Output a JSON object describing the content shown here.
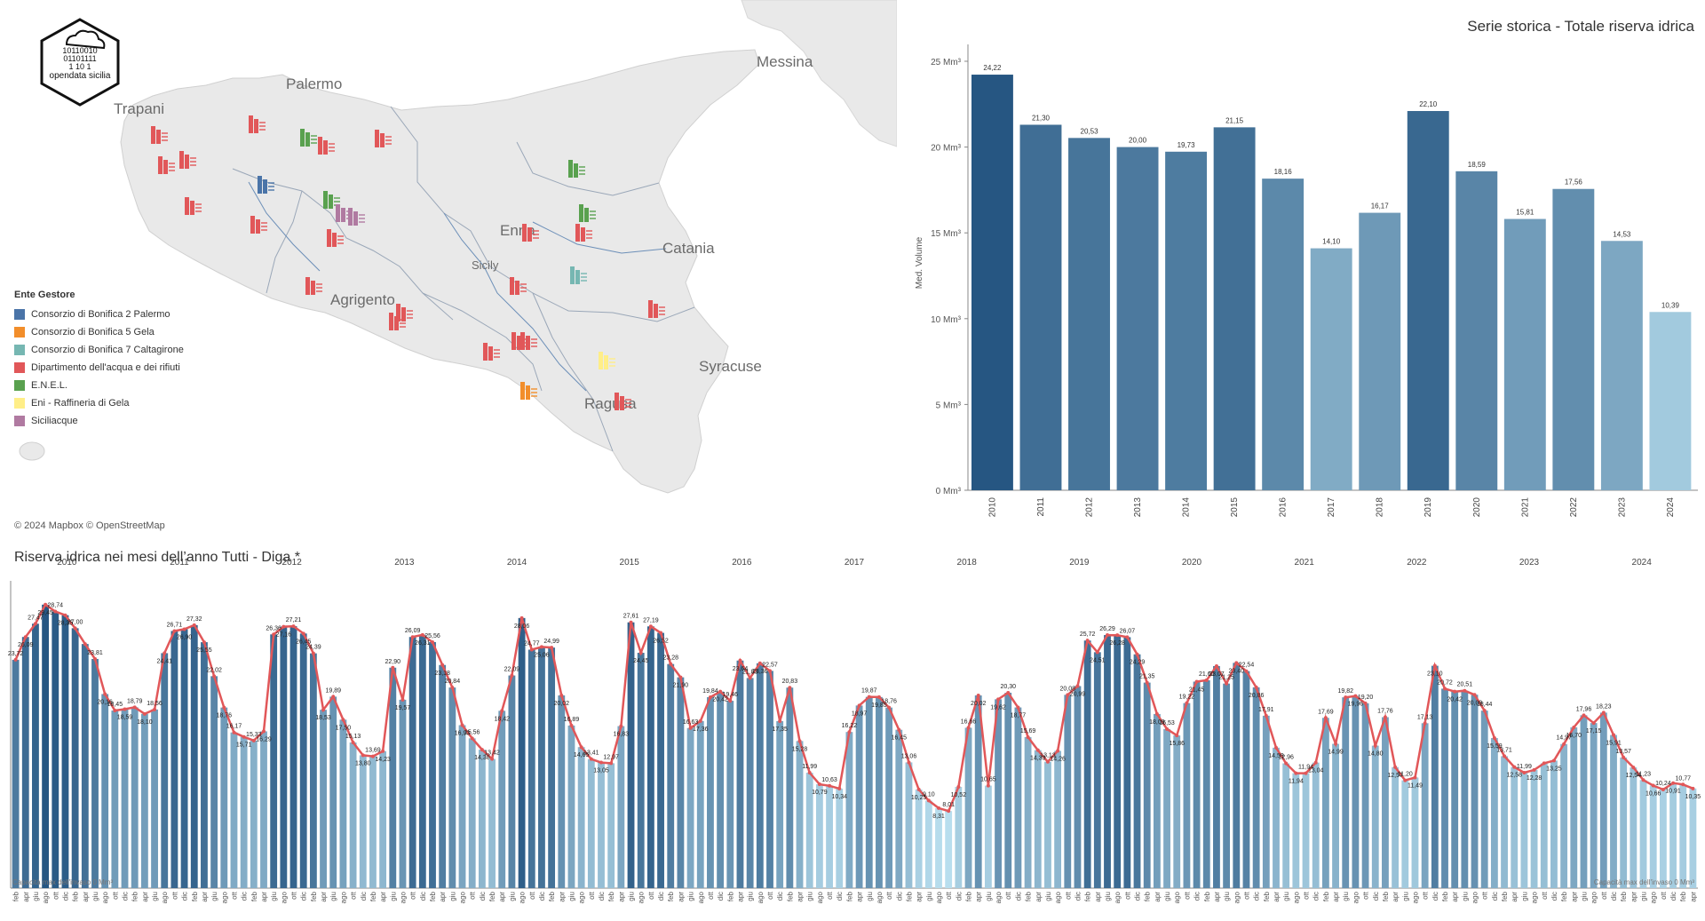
{
  "logo": {
    "text": "opendata sicilia",
    "binary": [
      "10110010",
      "01101111",
      "1  10 1"
    ]
  },
  "map": {
    "cities": [
      {
        "name": "Palermo"
      },
      {
        "name": "Trapani"
      },
      {
        "name": "Messina"
      },
      {
        "name": "Enna"
      },
      {
        "name": "Sicily"
      },
      {
        "name": "Catania"
      },
      {
        "name": "Agrigento"
      },
      {
        "name": "Syracuse"
      },
      {
        "name": "Ragusa"
      }
    ],
    "attribution": "© 2024 Mapbox  © OpenStreetMap",
    "legend": {
      "title": "Ente Gestore",
      "items": [
        {
          "label": "Consorzio di Bonifica 2 Palermo",
          "color": "#4a74a8"
        },
        {
          "label": "Consorzio di Bonifica 5 Gela",
          "color": "#f28e2b"
        },
        {
          "label": "Consorzio di Bonifica 7 Caltagirone",
          "color": "#76b7b2"
        },
        {
          "label": "Dipartimento dell'acqua e dei rifiuti",
          "color": "#e15759"
        },
        {
          "label": "E.N.E.L.",
          "color": "#59a14f"
        },
        {
          "label": "Eni - Raffineria di Gela",
          "color": "#ffee88"
        },
        {
          "label": "Siciliacque",
          "color": "#b07aa1"
        }
      ]
    }
  },
  "bar_chart": {
    "title": "Serie storica - Totale riserva idrica",
    "chart_data": {
      "type": "bar",
      "categories": [
        "2010",
        "2011",
        "2012",
        "2013",
        "2014",
        "2015",
        "2016",
        "2017",
        "2018",
        "2019",
        "2020",
        "2021",
        "2022",
        "2023",
        "2024"
      ],
      "values": [
        24.22,
        21.3,
        20.53,
        20.0,
        19.73,
        21.15,
        18.16,
        14.1,
        16.17,
        22.1,
        18.59,
        15.81,
        17.56,
        14.53,
        10.39
      ],
      "labels": [
        "24,22",
        "21,30",
        "20,53",
        "20,00",
        "19,73",
        "21,15",
        "18,16",
        "14,10",
        "16,17",
        "22,10",
        "18,59",
        "15,81",
        "17,56",
        "14,53",
        "10,39"
      ],
      "ylabel": "Med. Volume",
      "yticks": [
        "0 Mm³",
        "5 Mm³",
        "10 Mm³",
        "15 Mm³",
        "20 Mm³",
        "25 Mm³"
      ],
      "ylim": [
        0,
        26.5
      ]
    }
  },
  "monthly_chart": {
    "title": "Riserva idrica nei mesi dell’anno  Tutti - Diga *",
    "footnote_left": "Capacità max dell'invaso 0 Mm³",
    "footnote_right": "Capacità max dell'invaso 0 Mm³",
    "chart_data": {
      "type": "bar",
      "note": "monthly bars with red trend line; 14 months per year label",
      "years": [
        "2010",
        "2011",
        "2012",
        "2013",
        "2014",
        "2015",
        "2016",
        "2017",
        "2018",
        "2019",
        "2020",
        "2021",
        "2022",
        "2023",
        "2024"
      ],
      "month_labels": [
        "feb",
        "apr",
        "giu",
        "ago",
        "ott",
        "dic"
      ],
      "ylim": [
        0,
        31
      ],
      "values": [
        23.72,
        26.09,
        27.47,
        29.45,
        28.74,
        28.35,
        27.0,
        25.36,
        23.81,
        20.16,
        18.45,
        18.59,
        18.79,
        18.1,
        18.56,
        24.41,
        26.71,
        26.9,
        27.32,
        25.55,
        22.02,
        18.76,
        16.17,
        15.71,
        15.33,
        16.29,
        26.36,
        27.16,
        27.21,
        26.45,
        24.39,
        18.53,
        19.89,
        17.5,
        15.13,
        13.8,
        13.69,
        14.23,
        22.9,
        19.57,
        26.09,
        26.31,
        25.56,
        23.18,
        20.84,
        16.93,
        15.56,
        14.38,
        13.42,
        18.42,
        22.09,
        28.06,
        24.77,
        25.06,
        24.99,
        20.02,
        16.89,
        14.65,
        13.41,
        13.05,
        12.97,
        16.83,
        27.61,
        24.45,
        27.19,
        26.52,
        23.28,
        21.9,
        16.63,
        17.36,
        19.84,
        20.42,
        19.46,
        23.64,
        21.83,
        23.36,
        22.57,
        17.35,
        20.83,
        15.28,
        11.99,
        10.79,
        10.63,
        10.34,
        16.22,
        18.97,
        19.87,
        19.85,
        18.76,
        16.45,
        13.06,
        10.25,
        9.1,
        8.31,
        8.01,
        10.52,
        16.66,
        20.02,
        10.65,
        19.62,
        20.3,
        18.77,
        15.69,
        14.33,
        13.13,
        14.26,
        20.08,
        20.99,
        25.72,
        24.51,
        26.29,
        26.28,
        26.07,
        24.29,
        21.35,
        18.09,
        16.53,
        15.86,
        19.22,
        21.45,
        21.6,
        23.07,
        21.25,
        23.4,
        22.54,
        20.86,
        17.91,
        14.59,
        12.96,
        11.94,
        11.94,
        13.04,
        17.69,
        14.99,
        19.82,
        19.96,
        19.2,
        14.8,
        17.76,
        12.57,
        11.2,
        11.49,
        17.13,
        23.1,
        20.72,
        20.42,
        20.51,
        20.09,
        18.44,
        15.59,
        13.71,
        12.58,
        11.99,
        12.28,
        12.97,
        13.25,
        14.97,
        16.7,
        17.96,
        17.15,
        18.23,
        15.91,
        13.57,
        12.54,
        11.23,
        10.66,
        10.24,
        10.91,
        10.77,
        10.35
      ],
      "labels": [
        "23,72",
        "26,09",
        "27,47",
        "29,45",
        "28,74",
        "28,35",
        "27,00",
        "",
        "23,81",
        "20,16",
        "18,45",
        "18,59",
        "18,79",
        "18,10",
        "18,56",
        "24,41",
        "26,71",
        "26,90",
        "27,32",
        "25,55",
        "22,02",
        "18,76",
        "16,17",
        "15,71",
        "15,33",
        "16,29",
        "26,36",
        "27,16",
        "27,21",
        "26,45",
        "24,39",
        "18,53",
        "19,89",
        "17,50",
        "15,13",
        "13,80",
        "13,69",
        "14,23",
        "22,90",
        "19,57",
        "26,09",
        "26,31",
        "25,56",
        "23,18",
        "20,84",
        "16,93",
        "15,56",
        "14,38",
        "13,42",
        "18,42",
        "22,09",
        "28,06",
        "24,77",
        "25,06",
        "24,99",
        "20,02",
        "16,89",
        "14,65",
        "13,41",
        "13,05",
        "12,97",
        "16,83",
        "27,61",
        "24,45",
        "27,19",
        "26,52",
        "23,28",
        "21,90",
        "16,63",
        "17,36",
        "19,84",
        "20,42",
        "19,46",
        "23,64",
        "21,83",
        "23,36",
        "22,57",
        "17,35",
        "20,83",
        "15,28",
        "11,99",
        "10,79",
        "10,63",
        "10,34",
        "16,22",
        "18,97",
        "19,87",
        "19,85",
        "18,76",
        "16,45",
        "13,06",
        "10,25",
        "9,10",
        "8,31",
        "8,01",
        "10,52",
        "16,66",
        "20,02",
        "10,65",
        "19,62",
        "20,30",
        "18,77",
        "15,69",
        "14,33",
        "13,13",
        "14,26",
        "20,08",
        "20,99",
        "25,72",
        "24,51",
        "26,29",
        "26,28",
        "26,07",
        "24,29",
        "21,35",
        "18,09",
        "16,53",
        "15,86",
        "19,22",
        "21,45",
        "21,60",
        "23,07",
        "21,25",
        "23,40",
        "22,54",
        "20,86",
        "17,91",
        "14,59",
        "12,96",
        "11,94",
        "11,94",
        "13,04",
        "17,69",
        "14,99",
        "19,82",
        "19,96",
        "19,20",
        "14,80",
        "17,76",
        "12,57",
        "11,20",
        "11,49",
        "17,13",
        "23,10",
        "20,72",
        "20,42",
        "20,51",
        "20,09",
        "18,44",
        "15,59",
        "13,71",
        "12,58",
        "11,99",
        "12,28",
        "",
        "13,25",
        "14,97",
        "16,70",
        "17,96",
        "17,15",
        "18,23",
        "15,91",
        "13,57",
        "12,54",
        "11,23",
        "10,66",
        "10,24",
        "10,91",
        "10,77",
        "10,35"
      ]
    }
  }
}
